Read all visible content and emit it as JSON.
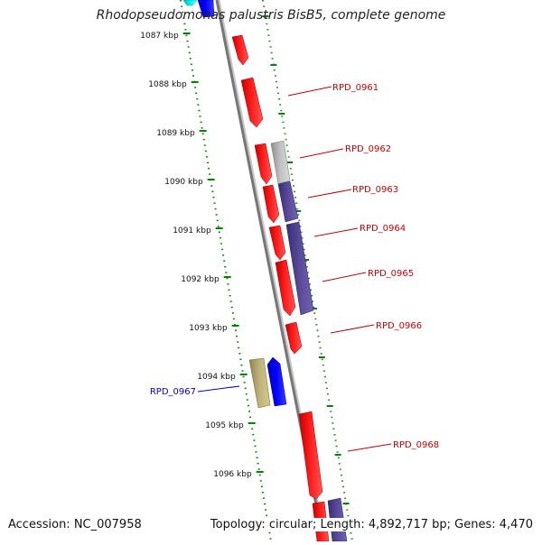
{
  "title": "Rhodopseudomonas palustris BisB5, complete genome",
  "footer": {
    "accession": "Accession: NC_007958",
    "summary": "Topology: circular; Length: 4,892,717 bp; Genes: 4,470"
  },
  "axis": {
    "ticks": [
      "1087 kbp",
      "1088 kbp",
      "1089 kbp",
      "1090 kbp",
      "1091 kbp",
      "1092 kbp",
      "1093 kbp",
      "1094 kbp",
      "1095 kbp",
      "1096 kbp"
    ]
  },
  "genes": {
    "labels": [
      {
        "text": "RPD_0961",
        "color": "#cc0000"
      },
      {
        "text": "RPD_0962",
        "color": "#cc0000"
      },
      {
        "text": "RPD_0963",
        "color": "#cc0000"
      },
      {
        "text": "RPD_0964",
        "color": "#cc0000"
      },
      {
        "text": "RPD_0965",
        "color": "#cc0000"
      },
      {
        "text": "RPD_0966",
        "color": "#cc0000"
      },
      {
        "text": "RPD_0967",
        "color": "#0000cc"
      },
      {
        "text": "RPD_0968",
        "color": "#cc0000"
      }
    ]
  },
  "colors": {
    "forward_cds": "#ff0000",
    "reverse_cds": "#0000ff",
    "other_feature": "#5a4a9a",
    "grey_feature": "#b0b0b0",
    "olive_feature": "#b8ae70",
    "cyan_feature": "#00e5e5",
    "backbone": "#888888",
    "ruler": "#008800"
  }
}
